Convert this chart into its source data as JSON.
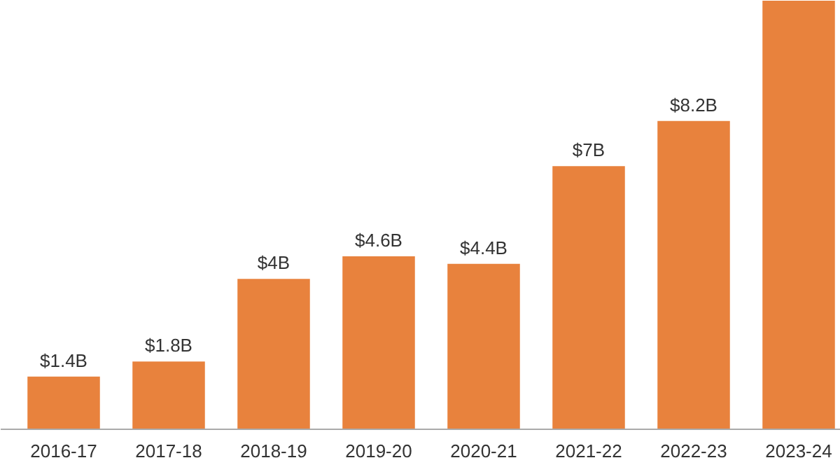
{
  "chart_data": {
    "type": "bar",
    "categories": [
      "2016-17",
      "2017-18",
      "2018-19",
      "2019-20",
      "2020-21",
      "2021-22",
      "2022-23",
      "2023-24"
    ],
    "values": [
      1.4,
      1.8,
      4,
      4.6,
      4.4,
      7,
      8.2,
      11.4
    ],
    "value_labels": [
      "$1.4B",
      "$1.8B",
      "$4B",
      "$4.6B",
      "$4.4B",
      "$7B",
      "$8.2B",
      null
    ],
    "color": "#e8823d",
    "ylim": [
      0,
      11.4
    ],
    "tick_labels": "x",
    "grid": false
  }
}
